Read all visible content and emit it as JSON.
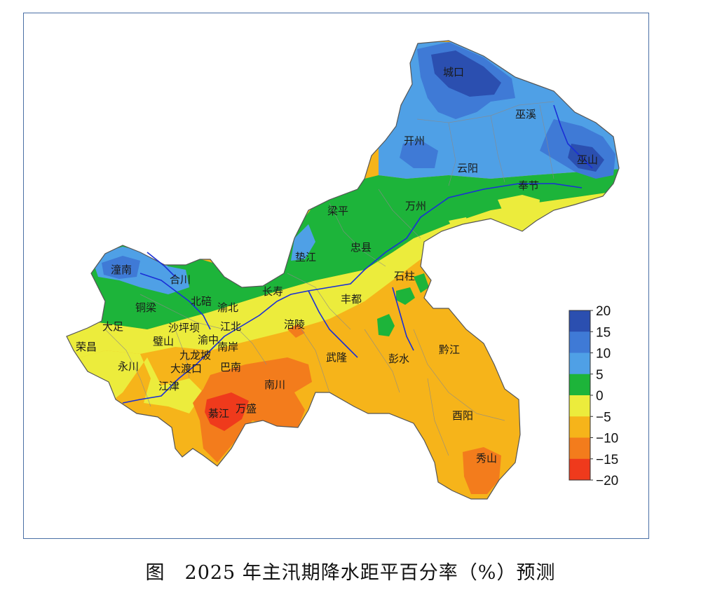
{
  "caption": {
    "label": "图",
    "title": "2025 年主汛期降水距平百分率（%）预测"
  },
  "legend": {
    "ticks": [
      "20",
      "15",
      "10",
      "5",
      "0",
      "−5",
      "−10",
      "−15",
      "−20"
    ],
    "colors": [
      "#2b4fb0",
      "#3f7ad6",
      "#4fa0e6",
      "#1db43a",
      "#ecec3c",
      "#f6b41a",
      "#f37c1c",
      "#ef3a1c"
    ]
  },
  "places": [
    "城口",
    "巫溪",
    "开州",
    "云阳",
    "巫山",
    "奉节",
    "梁平",
    "万州",
    "垫江",
    "忠县",
    "潼南",
    "合川",
    "长寿",
    "石柱",
    "北碚",
    "渝北",
    "丰都",
    "铜梁",
    "大足",
    "沙坪坝",
    "江北",
    "涪陵",
    "荣昌",
    "璧山",
    "渝中",
    "南岸",
    "九龙坡",
    "永川",
    "大渡口",
    "巴南",
    "武隆",
    "彭水",
    "黔江",
    "江津",
    "南川",
    "綦江",
    "万盛",
    "酉阳",
    "秀山"
  ]
}
